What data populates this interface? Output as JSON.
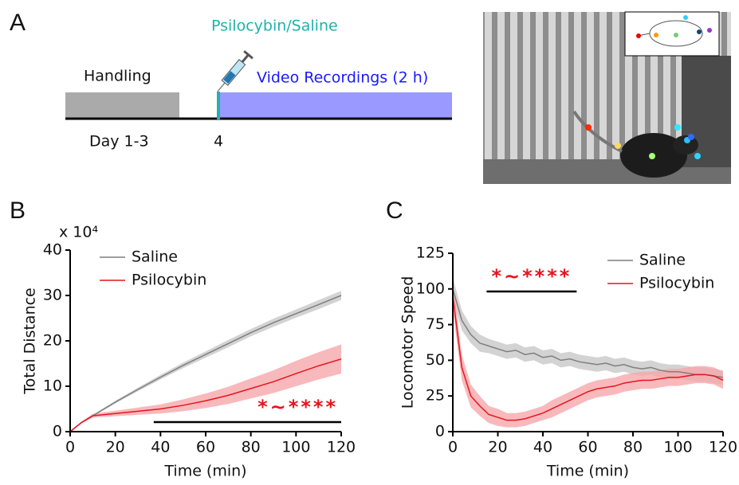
{
  "panel_labels": [
    "A",
    "B",
    "C"
  ],
  "timeline": {
    "stage1": "Handling",
    "treatment": "Psilocybin/Saline",
    "stage2": "Video Recordings (2 h)",
    "day1": "Day 1-3",
    "day2": "4"
  },
  "chart_data": [
    {
      "type": "line",
      "xlabel": "Time (min)",
      "ylabel": "Total Distance",
      "y_multiplier": "x 10⁴",
      "x": [
        0,
        5,
        10,
        20,
        30,
        40,
        50,
        60,
        70,
        80,
        90,
        100,
        110,
        120
      ],
      "xlim": [
        0,
        120
      ],
      "xticks": [
        0,
        20,
        40,
        60,
        80,
        100,
        120
      ],
      "ylim": [
        0,
        40
      ],
      "yticks": [
        0,
        10,
        20,
        30,
        40
      ],
      "legend": "upper left",
      "significance": {
        "label": "*~****",
        "x": [
          37,
          120
        ]
      },
      "series": [
        {
          "name": "Saline",
          "color": "#7f7f7f",
          "band_color": "#c8c8c8",
          "values": [
            0,
            2,
            3.5,
            6.5,
            9.3,
            12,
            14.6,
            17,
            19.4,
            21.8,
            24,
            26,
            28,
            30
          ],
          "error": [
            0,
            0.1,
            0.2,
            0.3,
            0.4,
            0.5,
            0.6,
            0.7,
            0.8,
            0.8,
            0.9,
            0.9,
            1,
            1
          ]
        },
        {
          "name": "Psilocybin",
          "color": "#e8141c",
          "band_color": "#f6a8ab",
          "values": [
            0,
            2,
            3.5,
            4,
            4.5,
            5,
            5.8,
            6.8,
            8,
            9.5,
            11,
            12.8,
            14.5,
            16
          ],
          "error": [
            0,
            0.2,
            0.4,
            0.6,
            0.8,
            1,
            1.3,
            1.6,
            1.9,
            2.2,
            2.5,
            2.8,
            3,
            3.2
          ]
        }
      ]
    },
    {
      "type": "line",
      "xlabel": "Time (min)",
      "ylabel": "Locomotor Speed",
      "x": [
        0,
        4,
        8,
        12,
        16,
        20,
        24,
        28,
        32,
        36,
        40,
        44,
        48,
        52,
        56,
        60,
        64,
        68,
        72,
        76,
        80,
        84,
        88,
        92,
        96,
        100,
        104,
        108,
        112,
        116,
        120
      ],
      "xlim": [
        0,
        120
      ],
      "xticks": [
        0,
        20,
        40,
        60,
        80,
        100,
        120
      ],
      "ylim": [
        0,
        125
      ],
      "yticks": [
        0,
        25,
        50,
        75,
        100,
        125
      ],
      "legend": "upper right",
      "significance": {
        "label": "*~****",
        "x": [
          15,
          55
        ]
      },
      "series": [
        {
          "name": "Saline",
          "color": "#7f7f7f",
          "band_color": "#c8c8c8",
          "values": [
            100,
            78,
            68,
            62,
            60,
            58,
            56,
            57,
            54,
            55,
            52,
            53,
            50,
            51,
            49,
            48,
            47,
            48,
            46,
            47,
            45,
            44,
            45,
            43,
            42,
            42,
            41,
            40,
            40,
            39,
            38
          ],
          "error": [
            8,
            7,
            6,
            6,
            5,
            5,
            5,
            5,
            5,
            5,
            5,
            5,
            5,
            5,
            5,
            5,
            5,
            5,
            5,
            5,
            5,
            5,
            5,
            5,
            5,
            5,
            5,
            5,
            5,
            5,
            5
          ]
        },
        {
          "name": "Psilocybin",
          "color": "#e8141c",
          "band_color": "#f6a8ab",
          "values": [
            95,
            45,
            25,
            18,
            12,
            10,
            8,
            8,
            9,
            11,
            13,
            16,
            19,
            22,
            25,
            28,
            30,
            31,
            32,
            34,
            35,
            36,
            36,
            37,
            38,
            38,
            39,
            40,
            40,
            39,
            36
          ],
          "error": [
            10,
            9,
            8,
            7,
            6,
            6,
            5,
            5,
            5,
            5,
            5,
            6,
            6,
            6,
            6,
            6,
            6,
            6,
            6,
            6,
            6,
            6,
            6,
            6,
            6,
            6,
            6,
            6,
            6,
            6,
            6
          ]
        }
      ]
    }
  ]
}
